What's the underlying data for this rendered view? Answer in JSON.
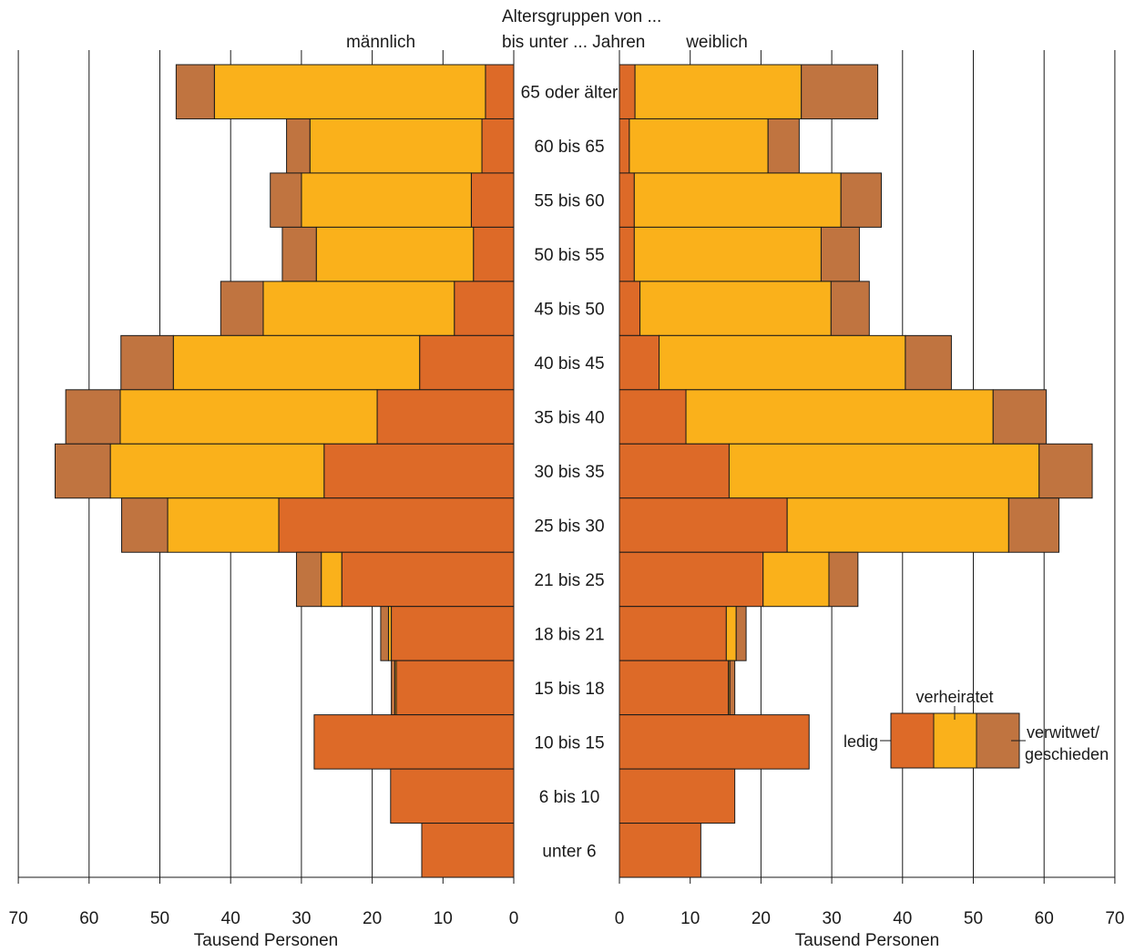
{
  "colors": {
    "ledig": "#dd6a28",
    "verheiratet": "#fab11b",
    "verwitwet": "#c07440",
    "outline": "#1a1a1a",
    "grid": "#1a1a1a"
  },
  "header": {
    "left_label": "männlich",
    "right_label": "weiblich",
    "center_line1": "Altersgruppen von ...",
    "center_line2": "bis unter ... Jahren"
  },
  "legend": {
    "ledig": "ledig",
    "verheiratet": "verheiratet",
    "verwitwet_line1": "verwitwet/",
    "verwitwet_line2": "geschieden"
  },
  "chart_data": {
    "type": "bar",
    "subtype": "population-pyramid (stacked horizontal bars, back-to-back)",
    "unit": "Tausend Personen",
    "xlabel_left": "Tausend Personen",
    "xlabel_right": "Tausend Personen",
    "xlim": [
      0,
      70
    ],
    "xticks": [
      0,
      10,
      20,
      30,
      40,
      50,
      60,
      70
    ],
    "grid": true,
    "legend_position": "lower-right",
    "categories": [
      "65 oder älter",
      "60 bis 65",
      "55 bis 60",
      "50 bis 55",
      "45 bis 50",
      "40 bis 45",
      "35 bis 40",
      "30 bis 35",
      "25 bis 30",
      "21 bis 25",
      "18 bis 21",
      "15 bis 18",
      "10 bis 15",
      "6 bis 10",
      "unter 6"
    ],
    "series_labels": [
      "ledig",
      "verheiratet",
      "verwitwet/geschieden"
    ],
    "male": {
      "name": "männlich",
      "ledig": [
        4.0,
        4.5,
        6.0,
        5.7,
        8.4,
        13.3,
        19.3,
        26.8,
        33.2,
        24.3,
        17.3,
        16.6,
        28.2,
        17.4,
        13.0
      ],
      "verheiratet": [
        38.3,
        24.3,
        24.0,
        22.2,
        27.0,
        34.8,
        36.3,
        30.2,
        15.7,
        2.9,
        0.4,
        0.2,
        0,
        0,
        0
      ],
      "verwitwet": [
        5.4,
        3.3,
        4.4,
        4.8,
        6.0,
        7.4,
        7.7,
        7.8,
        6.5,
        3.5,
        1.1,
        0.5,
        0,
        0,
        0
      ]
    },
    "female": {
      "name": "weiblich",
      "ledig": [
        2.2,
        1.4,
        2.1,
        2.1,
        2.9,
        5.6,
        9.4,
        15.5,
        23.7,
        20.3,
        15.1,
        15.4,
        26.8,
        16.3,
        11.5
      ],
      "verheiratet": [
        23.5,
        19.6,
        29.2,
        26.4,
        27.0,
        34.8,
        43.4,
        43.8,
        31.3,
        9.3,
        1.4,
        0.2,
        0,
        0,
        0
      ],
      "verwitwet": [
        10.8,
        4.4,
        5.7,
        5.4,
        5.4,
        6.5,
        7.5,
        7.5,
        7.1,
        4.1,
        1.4,
        0.7,
        0,
        0,
        0
      ]
    }
  }
}
